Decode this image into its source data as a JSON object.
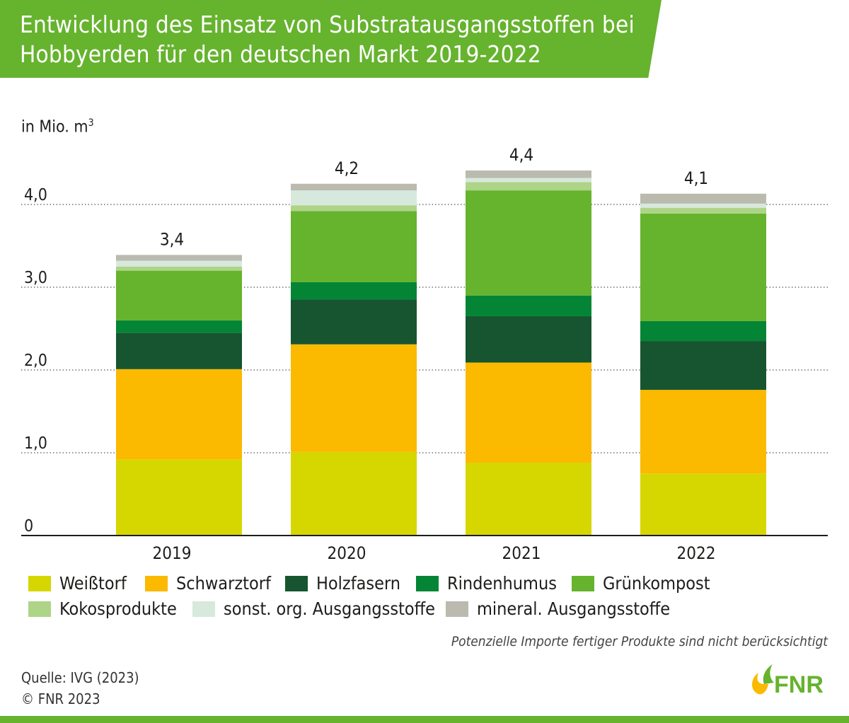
{
  "header": {
    "title": "Entwicklung des Einsatz von Substratausgangsstoffen bei Hobbyerden für den deutschen Markt 2019-2022"
  },
  "chart_data": {
    "type": "bar",
    "stacked": true,
    "title": "Entwicklung des Einsatz von Substratausgangsstoffen bei Hobbyerden für den deutschen Markt 2019-2022",
    "ylabel": "in Mio. m",
    "ylabel_sup": "3",
    "ylim": [
      0,
      4.7
    ],
    "yticks": [
      0,
      1,
      2,
      3,
      4
    ],
    "ytick_labels": [
      "0",
      "1,0",
      "2,0",
      "3,0",
      "4,0"
    ],
    "grid": "horizontal dotted",
    "legend_position": "bottom",
    "categories": [
      "2019",
      "2020",
      "2021",
      "2022"
    ],
    "totals": [
      3.4,
      4.2,
      4.4,
      4.1
    ],
    "total_labels": [
      "3,4",
      "4,2",
      "4,4",
      "4,1"
    ],
    "series": [
      {
        "name": "Weißtorf",
        "color": "#d6d600",
        "values": [
          0.92,
          1.01,
          0.88,
          0.75
        ]
      },
      {
        "name": "Schwarztorf",
        "color": "#fbb900",
        "values": [
          1.09,
          1.3,
          1.21,
          1.01
        ]
      },
      {
        "name": "Holzfasern",
        "color": "#165530",
        "values": [
          0.44,
          0.54,
          0.56,
          0.59
        ]
      },
      {
        "name": "Rindenhumus",
        "color": "#038535",
        "values": [
          0.15,
          0.21,
          0.25,
          0.24
        ]
      },
      {
        "name": "Grünkompost",
        "color": "#66b32e",
        "values": [
          0.6,
          0.86,
          1.27,
          1.3
        ]
      },
      {
        "name": "Kokosprodukte",
        "color": "#aed487",
        "values": [
          0.05,
          0.07,
          0.1,
          0.07
        ]
      },
      {
        "name": "sonst. org. Ausgangsstoffe",
        "color": "#d7e8dc",
        "values": [
          0.07,
          0.18,
          0.05,
          0.05
        ]
      },
      {
        "name": "mineral. Ausgangsstoffe",
        "color": "#bbbaaf",
        "values": [
          0.07,
          0.08,
          0.09,
          0.12
        ]
      }
    ]
  },
  "note": "Potenzielle Importe fertiger Produkte sind nicht berücksichtigt",
  "source": {
    "line1": "Quelle: IVG (2023)",
    "line2": "© FNR 2023"
  },
  "logo": {
    "text": "FNR",
    "icon": "fnr-flame-logo",
    "colors": {
      "text": "#66b32e",
      "flame": "#fbb900"
    }
  }
}
